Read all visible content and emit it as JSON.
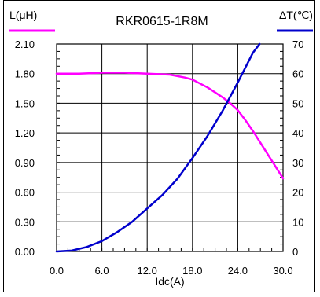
{
  "chart_data": {
    "type": "line",
    "title": "RKR0615-1R8M",
    "xlabel": "Idc(A)",
    "ylabel_left": "L(μH)",
    "ylabel_right": "ΔT(℃)",
    "xlim": [
      0,
      30
    ],
    "ylim_left": [
      0,
      2.1
    ],
    "ylim_right": [
      0,
      70
    ],
    "x_ticks": [
      "0.0",
      "6.0",
      "12.0",
      "18.0",
      "24.0",
      "30.0"
    ],
    "y_left_ticks": [
      "0.00",
      "0.30",
      "0.60",
      "0.90",
      "1.20",
      "1.50",
      "1.80",
      "2.10"
    ],
    "y_right_ticks": [
      "0",
      "10",
      "20",
      "30",
      "40",
      "50",
      "60",
      "70"
    ],
    "grid": true,
    "series": [
      {
        "name": "L(μH)",
        "axis": "left",
        "color": "#ff00ff",
        "x": [
          0,
          3,
          6,
          9,
          12,
          15,
          17,
          18,
          19,
          20,
          21,
          22,
          23,
          24,
          25,
          26,
          27,
          28,
          29,
          30
        ],
        "y": [
          1.8,
          1.8,
          1.81,
          1.81,
          1.8,
          1.79,
          1.76,
          1.74,
          1.7,
          1.66,
          1.61,
          1.56,
          1.5,
          1.43,
          1.33,
          1.22,
          1.1,
          0.98,
          0.86,
          0.74
        ]
      },
      {
        "name": "ΔT(℃)",
        "axis": "right",
        "color": "#0000cc",
        "x": [
          0,
          2,
          4,
          6,
          8,
          10,
          12,
          14,
          16,
          18,
          20,
          22,
          24,
          26,
          26.9
        ],
        "y": [
          0,
          0.3,
          1.5,
          3.5,
          6.5,
          10.0,
          14.5,
          19.0,
          24.5,
          31.5,
          39.0,
          47.5,
          57.0,
          67.0,
          70.0
        ]
      }
    ]
  }
}
